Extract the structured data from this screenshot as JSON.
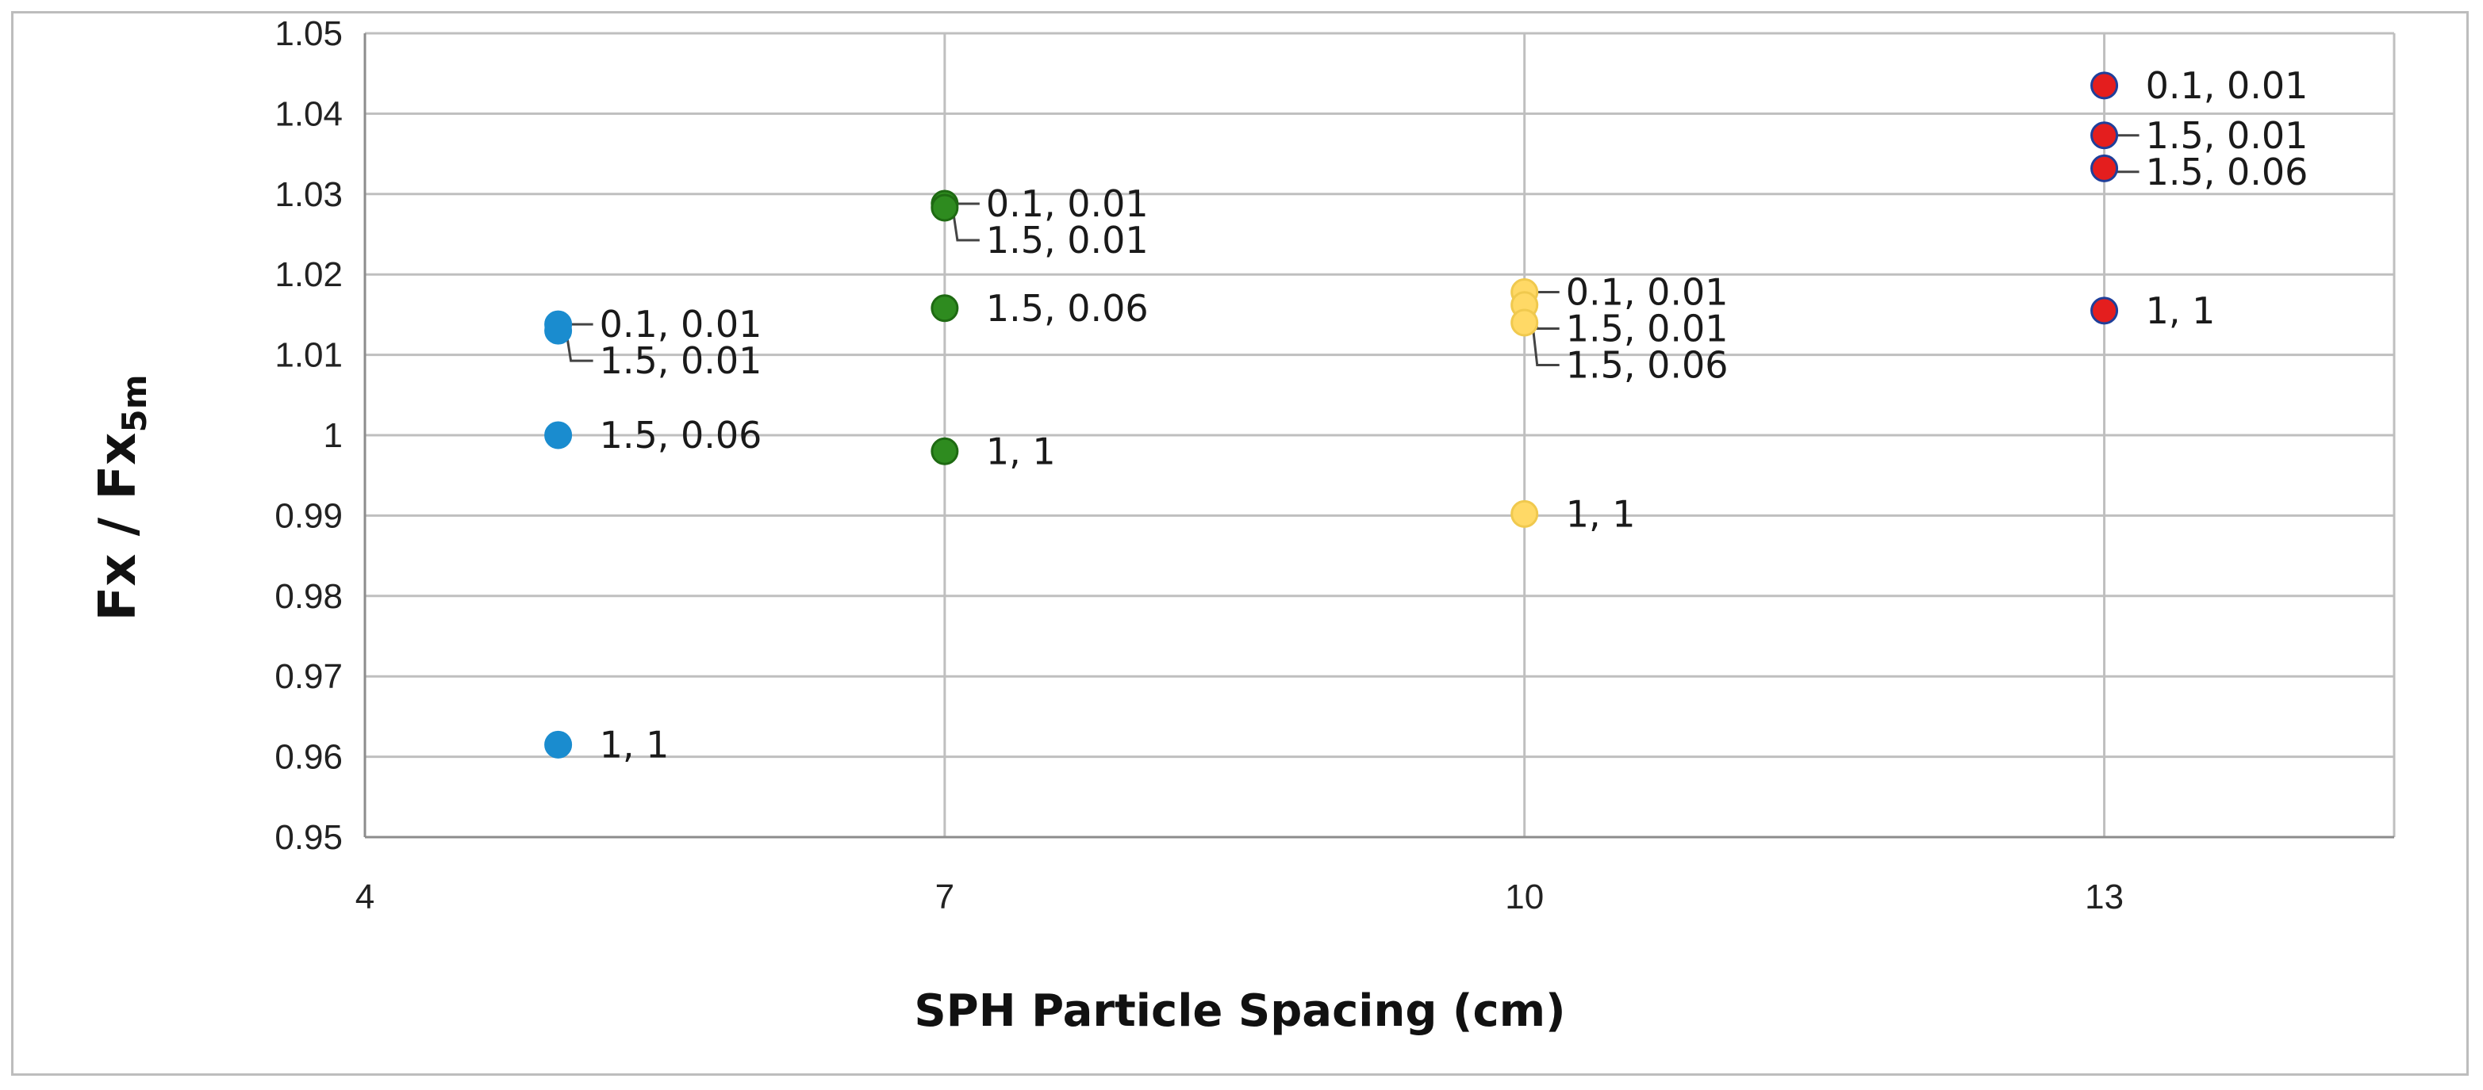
{
  "chart_data": {
    "type": "scatter",
    "xlabel": "SPH Particle Spacing (cm)",
    "ylabel": {
      "main": "Fx / Fx",
      "subscript": "5m"
    },
    "xlim": [
      4,
      14.5
    ],
    "ylim": [
      0.95,
      1.05
    ],
    "x_ticks": [
      {
        "value": 4,
        "label": "4"
      },
      {
        "value": 7,
        "label": "7"
      },
      {
        "value": 10,
        "label": "10"
      },
      {
        "value": 13,
        "label": "13"
      }
    ],
    "y_ticks": [
      {
        "value": 0.95,
        "label": "0.95"
      },
      {
        "value": 0.96,
        "label": "0.96"
      },
      {
        "value": 0.97,
        "label": "0.97"
      },
      {
        "value": 0.98,
        "label": "0.98"
      },
      {
        "value": 0.99,
        "label": "0.99"
      },
      {
        "value": 1.0,
        "label": "1"
      },
      {
        "value": 1.01,
        "label": "1.01"
      },
      {
        "value": 1.02,
        "label": "1.02"
      },
      {
        "value": 1.03,
        "label": "1.03"
      },
      {
        "value": 1.04,
        "label": "1.04"
      },
      {
        "value": 1.05,
        "label": "1.05"
      }
    ],
    "grid": true,
    "legend": "none",
    "series": [
      {
        "color": "#1a8ccf",
        "edge": "#1a8ccf",
        "points": [
          {
            "x": 5,
            "y": 1.0138,
            "label": "0.1, 0.01"
          },
          {
            "x": 5,
            "y": 1.013,
            "label": "1.5, 0.01"
          },
          {
            "x": 5,
            "y": 1.0,
            "label": "1.5, 0.06"
          },
          {
            "x": 5,
            "y": 0.9615,
            "label": "1, 1"
          }
        ]
      },
      {
        "color": "#2e8b1f",
        "edge": "#1e6a12",
        "points": [
          {
            "x": 7,
            "y": 1.0288,
            "label": "0.1, 0.01"
          },
          {
            "x": 7,
            "y": 1.0283,
            "label": "1.5, 0.01"
          },
          {
            "x": 7,
            "y": 1.0158,
            "label": "1.5, 0.06"
          },
          {
            "x": 7,
            "y": 0.998,
            "label": "1, 1"
          }
        ]
      },
      {
        "color": "#ffd966",
        "edge": "#f0c94e",
        "points": [
          {
            "x": 10,
            "y": 1.0178,
            "label": "0.1, 0.01"
          },
          {
            "x": 10,
            "y": 1.0162,
            "label": "1.5, 0.01"
          },
          {
            "x": 10,
            "y": 1.014,
            "label": "1.5, 0.06"
          },
          {
            "x": 10,
            "y": 0.9902,
            "label": "1, 1"
          }
        ]
      },
      {
        "color": "#e41e1e",
        "edge": "#1f3f9a",
        "points": [
          {
            "x": 13,
            "y": 1.0435,
            "label": "0.1, 0.01"
          },
          {
            "x": 13,
            "y": 1.0373,
            "label": "1.5, 0.01"
          },
          {
            "x": 13,
            "y": 1.0332,
            "label": "1.5, 0.06"
          },
          {
            "x": 13,
            "y": 1.0155,
            "label": "1, 1"
          }
        ]
      }
    ]
  }
}
